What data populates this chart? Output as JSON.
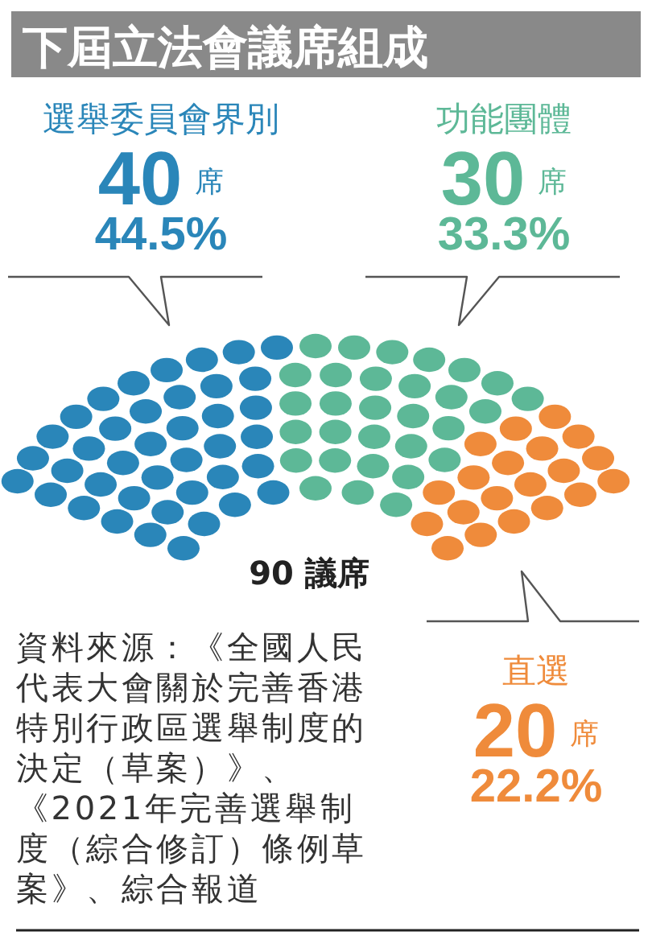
{
  "chart_data": {
    "type": "other",
    "title": "下屆立法會議席組成",
    "categories": [
      "選舉委員會界別",
      "功能團體",
      "直選"
    ],
    "values": [
      40,
      30,
      20
    ],
    "colors": [
      "#2a86b9",
      "#5db897",
      "#ef8b3b"
    ],
    "value_labels": [
      "40 席",
      "30 席",
      "20 席"
    ],
    "annotations": [
      {
        "text": "44.5%",
        "x": "選舉委員會界別"
      },
      {
        "text": "33.3%",
        "x": "功能團體"
      },
      {
        "text": "22.2%",
        "x": "直選"
      },
      "90 議席",
      "資料來源：《全國人民代表大會關於完善香港特別行政區選舉制度的決定（草案）》、《2021年完善選舉制度（綜合修訂）條例草案》、綜合報道"
    ]
  }
}
